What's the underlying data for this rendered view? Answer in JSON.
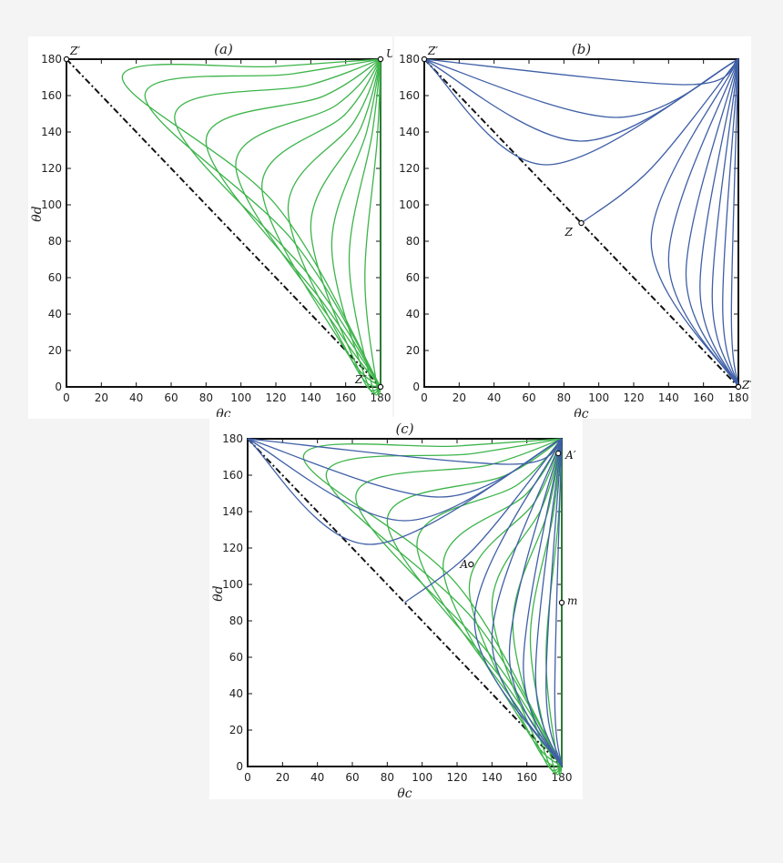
{
  "chart_data": [
    {
      "id": "a",
      "type": "line",
      "title": "(a)",
      "xlabel": "θc",
      "ylabel": "θd",
      "xlim": [
        0,
        180
      ],
      "ylim": [
        0,
        180
      ],
      "xticks": [
        "0",
        "20",
        "40",
        "60",
        "80",
        "100",
        "120",
        "140",
        "160",
        "180"
      ],
      "yticks": [
        "0",
        "20",
        "40",
        "60",
        "80",
        "100",
        "120",
        "140",
        "160",
        "180"
      ],
      "grid": false,
      "colors": {
        "green": "#3cb44a",
        "blue": "#3f5fa6"
      },
      "diagonal": {
        "from": [
          0,
          180
        ],
        "to": [
          180,
          0
        ],
        "style": "dash-dot"
      },
      "series": [
        {
          "color": "green",
          "x": [
            180,
            120,
            32,
            120,
            180
          ],
          "y": [
            180,
            176,
            170,
            100,
            0
          ]
        },
        {
          "color": "green",
          "x": [
            180,
            130,
            45,
            130,
            180
          ],
          "y": [
            180,
            172,
            160,
            80,
            0
          ]
        },
        {
          "color": "green",
          "x": [
            180,
            140,
            62,
            140,
            180
          ],
          "y": [
            180,
            166,
            148,
            60,
            0
          ]
        },
        {
          "color": "green",
          "x": [
            180,
            148,
            80,
            148,
            180
          ],
          "y": [
            180,
            160,
            135,
            45,
            0
          ]
        },
        {
          "color": "green",
          "x": [
            180,
            155,
            97,
            155,
            180
          ],
          "y": [
            180,
            155,
            122,
            32,
            0
          ]
        },
        {
          "color": "green",
          "x": [
            180,
            160,
            112,
            160,
            180
          ],
          "y": [
            180,
            150,
            110,
            20,
            0
          ]
        },
        {
          "color": "green",
          "x": [
            180,
            165,
            127,
            165,
            180
          ],
          "y": [
            180,
            146,
            98,
            12,
            0
          ]
        },
        {
          "color": "green",
          "x": [
            180,
            169,
            140,
            169,
            180
          ],
          "y": [
            180,
            143,
            88,
            6,
            0
          ]
        },
        {
          "color": "green",
          "x": [
            180,
            172,
            152,
            172,
            180
          ],
          "y": [
            180,
            140,
            78,
            3,
            0
          ]
        },
        {
          "color": "green",
          "x": [
            180,
            175,
            162,
            175,
            180
          ],
          "y": [
            180,
            138,
            70,
            1,
            0
          ]
        },
        {
          "color": "green",
          "x": [
            180,
            178,
            171,
            178,
            180
          ],
          "y": [
            180,
            135,
            60,
            0,
            0
          ]
        },
        {
          "color": "green",
          "x": [
            180,
            180,
            180
          ],
          "y": [
            180,
            90,
            0
          ]
        }
      ],
      "points": [
        {
          "label": "Z′",
          "x": 0,
          "y": 180,
          "label_dx": 4,
          "label_dy": -5
        },
        {
          "label": "U",
          "x": 180,
          "y": 180,
          "label_dx": 6,
          "label_dy": -2
        },
        {
          "label": "Z″",
          "x": 180,
          "y": 0,
          "label_dx": -28,
          "label_dy": -4
        }
      ]
    },
    {
      "id": "b",
      "type": "line",
      "title": "(b)",
      "xlabel": "θc",
      "ylabel": "",
      "xlim": [
        0,
        180
      ],
      "ylim": [
        0,
        180
      ],
      "xticks": [
        "0",
        "20",
        "40",
        "60",
        "80",
        "100",
        "120",
        "140",
        "160",
        "180"
      ],
      "yticks": [
        "0",
        "20",
        "40",
        "60",
        "80",
        "100",
        "120",
        "140",
        "160",
        "180"
      ],
      "grid": false,
      "colors": {
        "green": "#3cb44a",
        "blue": "#3f5fa6"
      },
      "diagonal": {
        "from": [
          0,
          180
        ],
        "to": [
          180,
          0
        ],
        "style": "dash-dot"
      },
      "series": [
        {
          "color": "blue",
          "x": [
            0,
            150,
            180
          ],
          "y": [
            180,
            166,
            180
          ]
        },
        {
          "color": "blue",
          "x": [
            0,
            110,
            180
          ],
          "y": [
            180,
            148,
            180
          ]
        },
        {
          "color": "blue",
          "x": [
            0,
            90,
            180
          ],
          "y": [
            180,
            135,
            180
          ]
        },
        {
          "color": "blue",
          "x": [
            0,
            70,
            180
          ],
          "y": [
            180,
            122,
            180
          ]
        },
        {
          "color": "blue",
          "x": [
            90,
            130,
            180
          ],
          "y": [
            90,
            120,
            180
          ]
        },
        {
          "color": "blue",
          "x": [
            180,
            130,
            180
          ],
          "y": [
            0,
            80,
            180
          ]
        },
        {
          "color": "blue",
          "x": [
            180,
            140,
            180
          ],
          "y": [
            0,
            70,
            180
          ]
        },
        {
          "color": "blue",
          "x": [
            180,
            150,
            180
          ],
          "y": [
            0,
            62,
            180
          ]
        },
        {
          "color": "blue",
          "x": [
            180,
            158,
            180
          ],
          "y": [
            0,
            55,
            180
          ]
        },
        {
          "color": "blue",
          "x": [
            180,
            165,
            180
          ],
          "y": [
            0,
            50,
            180
          ]
        },
        {
          "color": "blue",
          "x": [
            180,
            171,
            180
          ],
          "y": [
            0,
            45,
            180
          ]
        },
        {
          "color": "blue",
          "x": [
            180,
            176,
            180
          ],
          "y": [
            0,
            40,
            180
          ]
        }
      ],
      "points": [
        {
          "label": "Z′",
          "x": 0,
          "y": 180,
          "label_dx": 4,
          "label_dy": -5
        },
        {
          "label": "Z",
          "x": 90,
          "y": 90,
          "label_dx": -18,
          "label_dy": 14
        },
        {
          "label": "Z″",
          "x": 180,
          "y": 0,
          "label_dx": 4,
          "label_dy": 2
        }
      ]
    },
    {
      "id": "c",
      "type": "line",
      "title": "(c)",
      "xlabel": "θc",
      "ylabel": "θd",
      "xlim": [
        0,
        180
      ],
      "ylim": [
        0,
        180
      ],
      "xticks": [
        "0",
        "20",
        "40",
        "60",
        "80",
        "100",
        "120",
        "140",
        "160",
        "180"
      ],
      "yticks": [
        "0",
        "20",
        "40",
        "60",
        "80",
        "100",
        "120",
        "140",
        "160",
        "180"
      ],
      "grid": false,
      "colors": {
        "green": "#3cb44a",
        "blue": "#3f5fa6"
      },
      "diagonal": {
        "from": [
          0,
          180
        ],
        "to": [
          180,
          0
        ],
        "style": "dash-dot"
      },
      "series": [
        {
          "color": "green",
          "x": [
            180,
            120,
            32,
            120,
            180
          ],
          "y": [
            180,
            176,
            170,
            100,
            0
          ]
        },
        {
          "color": "green",
          "x": [
            180,
            130,
            45,
            130,
            180
          ],
          "y": [
            180,
            172,
            160,
            80,
            0
          ]
        },
        {
          "color": "green",
          "x": [
            180,
            140,
            62,
            140,
            180
          ],
          "y": [
            180,
            166,
            148,
            60,
            0
          ]
        },
        {
          "color": "green",
          "x": [
            180,
            148,
            80,
            148,
            180
          ],
          "y": [
            180,
            160,
            135,
            45,
            0
          ]
        },
        {
          "color": "green",
          "x": [
            180,
            155,
            97,
            155,
            180
          ],
          "y": [
            180,
            155,
            122,
            32,
            0
          ]
        },
        {
          "color": "green",
          "x": [
            180,
            160,
            112,
            160,
            180
          ],
          "y": [
            180,
            150,
            110,
            20,
            0
          ]
        },
        {
          "color": "green",
          "x": [
            180,
            165,
            127,
            165,
            180
          ],
          "y": [
            180,
            146,
            98,
            12,
            0
          ]
        },
        {
          "color": "green",
          "x": [
            180,
            169,
            140,
            169,
            180
          ],
          "y": [
            180,
            143,
            88,
            6,
            0
          ]
        },
        {
          "color": "green",
          "x": [
            180,
            172,
            152,
            172,
            180
          ],
          "y": [
            180,
            140,
            78,
            3,
            0
          ]
        },
        {
          "color": "green",
          "x": [
            180,
            175,
            162,
            175,
            180
          ],
          "y": [
            180,
            138,
            70,
            1,
            0
          ]
        },
        {
          "color": "green",
          "x": [
            180,
            178,
            171,
            178,
            180
          ],
          "y": [
            180,
            135,
            60,
            0,
            0
          ]
        },
        {
          "color": "green",
          "x": [
            180,
            180,
            180
          ],
          "y": [
            180,
            90,
            0
          ]
        },
        {
          "color": "blue",
          "x": [
            0,
            150,
            180
          ],
          "y": [
            180,
            166,
            180
          ]
        },
        {
          "color": "blue",
          "x": [
            0,
            110,
            180
          ],
          "y": [
            180,
            148,
            180
          ]
        },
        {
          "color": "blue",
          "x": [
            0,
            90,
            180
          ],
          "y": [
            180,
            135,
            180
          ]
        },
        {
          "color": "blue",
          "x": [
            0,
            70,
            180
          ],
          "y": [
            180,
            122,
            180
          ]
        },
        {
          "color": "blue",
          "x": [
            90,
            130,
            180
          ],
          "y": [
            90,
            120,
            180
          ]
        },
        {
          "color": "blue",
          "x": [
            180,
            130,
            180
          ],
          "y": [
            0,
            80,
            180
          ]
        },
        {
          "color": "blue",
          "x": [
            180,
            140,
            180
          ],
          "y": [
            0,
            70,
            180
          ]
        },
        {
          "color": "blue",
          "x": [
            180,
            150,
            180
          ],
          "y": [
            0,
            62,
            180
          ]
        },
        {
          "color": "blue",
          "x": [
            180,
            158,
            180
          ],
          "y": [
            0,
            55,
            180
          ]
        },
        {
          "color": "blue",
          "x": [
            180,
            165,
            180
          ],
          "y": [
            0,
            50,
            180
          ]
        },
        {
          "color": "blue",
          "x": [
            180,
            171,
            180
          ],
          "y": [
            0,
            45,
            180
          ]
        },
        {
          "color": "blue",
          "x": [
            180,
            176,
            180
          ],
          "y": [
            0,
            40,
            180
          ]
        }
      ],
      "points": [
        {
          "label": "A",
          "x": 128,
          "y": 111,
          "label_dx": -12,
          "label_dy": 4
        },
        {
          "label": "A′",
          "x": 178,
          "y": 172,
          "label_dx": 8,
          "label_dy": 6
        },
        {
          "label": "m",
          "x": 180,
          "y": 90,
          "label_dx": 6,
          "label_dy": 2
        }
      ]
    }
  ]
}
